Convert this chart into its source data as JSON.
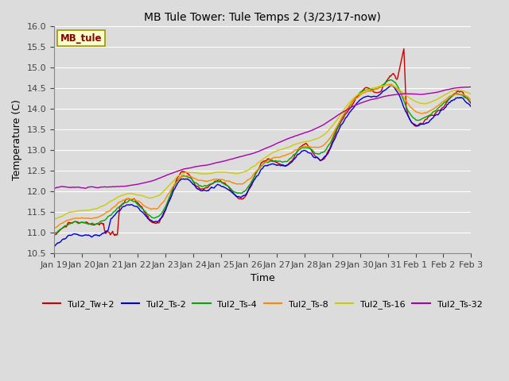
{
  "title": "MB Tule Tower: Tule Temps 2 (3/23/17-now)",
  "xlabel": "Time",
  "ylabel": "Temperature (C)",
  "ylim": [
    10.5,
    16.0
  ],
  "background_color": "#dcdcdc",
  "plot_bg_color": "#dcdcdc",
  "grid_color": "#ffffff",
  "series": {
    "Tul2_Tw+2": {
      "color": "#cc0000",
      "lw": 1.2
    },
    "Tul2_Ts-2": {
      "color": "#0000dd",
      "lw": 1.2
    },
    "Tul2_Ts-4": {
      "color": "#00aa00",
      "lw": 1.2
    },
    "Tul2_Ts-8": {
      "color": "#ff8800",
      "lw": 1.2
    },
    "Tul2_Ts-16": {
      "color": "#cccc00",
      "lw": 1.2
    },
    "Tul2_Ts-32": {
      "color": "#aa00aa",
      "lw": 1.2
    }
  },
  "xtick_labels": [
    "Jan 19",
    "Jan 20",
    "Jan 21",
    "Jan 22",
    "Jan 23",
    "Jan 24",
    "Jan 25",
    "Jan 26",
    "Jan 27",
    "Jan 28",
    "Jan 29",
    "Jan 30",
    "Jan 31",
    "Feb 1",
    "Feb 2",
    "Feb 3"
  ],
  "inset_label": "MB_tule",
  "inset_label_color": "#8b0000",
  "inset_bg": "#ffffcc",
  "inset_border": "#999900"
}
